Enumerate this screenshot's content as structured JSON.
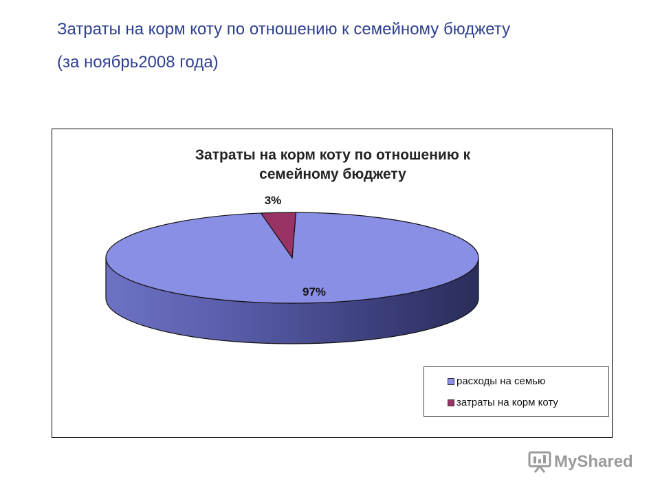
{
  "slide": {
    "title": "Затраты на корм коту по отношению к семейному бюджету",
    "subtitle": "(за ноябрь2008 года)"
  },
  "chart_data": {
    "type": "pie",
    "title_lines": [
      "Затраты на корм коту по отношению к",
      "семейному бюджету"
    ],
    "slices": [
      {
        "name": "расходы на семью",
        "value": 97,
        "label": "97%",
        "color": "#8a8fe6"
      },
      {
        "name": "затраты на корм коту",
        "value": 3,
        "label": "3%",
        "color": "#993366"
      }
    ],
    "style": "3d",
    "legend_position": "bottom-right"
  },
  "legend": {
    "item0": "расходы на семью",
    "item1": "затраты на корм коту"
  },
  "logo": {
    "text": "MyShared",
    "icon": "presentation-screen-icon"
  }
}
